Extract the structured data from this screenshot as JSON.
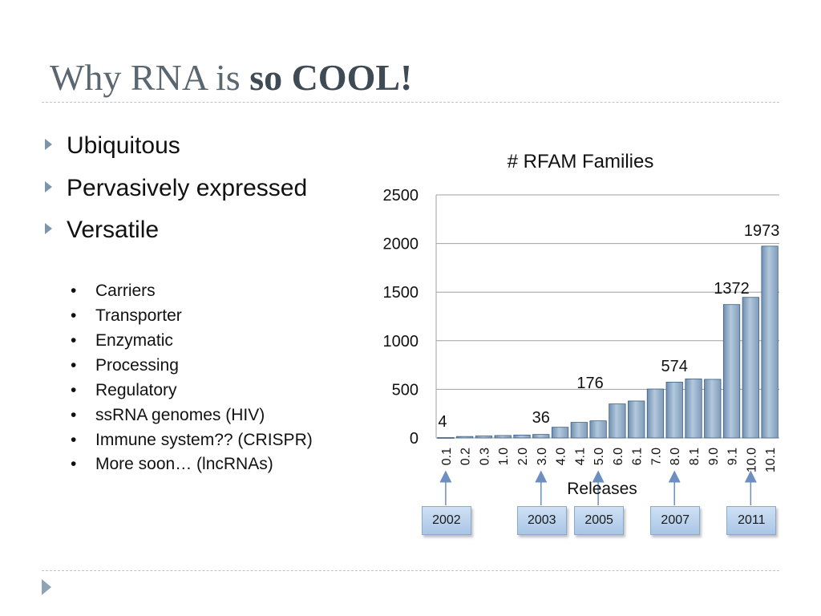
{
  "slide": {
    "title_plain": "Why RNA is ",
    "title_bold": "so COOL!",
    "bullets": [
      "Ubiquitous",
      "Pervasively expressed",
      "Versatile"
    ],
    "sub_bullets": [
      "Carriers",
      "Transporter",
      "Enzymatic",
      "Processing",
      "Regulatory",
      "ssRNA genomes (HIV)",
      "Immune system?? (CRISPR)",
      "More soon… (lncRNAs)"
    ],
    "sub_bullet_marker": "•"
  },
  "colors": {
    "bar_fill": "#8aa7c3",
    "bar_stroke": "#3f5f80",
    "axis": "#a0a0a0",
    "title": "#5a6670",
    "year_box": "#b7d0ec"
  },
  "chart_data": {
    "type": "bar",
    "title": "# RFAM Families",
    "xlabel": "Releases",
    "ylabel": "",
    "ylim": [
      0,
      2500
    ],
    "yticks": [
      "0",
      "500",
      "1000",
      "1500",
      "2000",
      "2500"
    ],
    "grid": true,
    "categories": [
      "0.1",
      "0.2",
      "0.3",
      "1.0",
      "2.0",
      "3.0",
      "4.0",
      "4.1",
      "5.0",
      "6.0",
      "6.1",
      "7.0",
      "8.0",
      "8.1",
      "9.0",
      "9.1",
      "10.0",
      "10.1"
    ],
    "values": [
      4,
      15,
      20,
      25,
      30,
      36,
      110,
      160,
      176,
      350,
      380,
      503,
      574,
      607,
      603,
      1372,
      1446,
      1973
    ],
    "data_labels": [
      {
        "category": "0.1",
        "text": "4"
      },
      {
        "category": "3.0",
        "text": "36"
      },
      {
        "category": "5.0",
        "text": "176"
      },
      {
        "category": "8.0",
        "text": "574"
      },
      {
        "category": "9.1",
        "text": "1372"
      },
      {
        "category": "10.1",
        "text": "1973"
      }
    ],
    "year_annotations": [
      {
        "category": "0.1",
        "label": "2002"
      },
      {
        "category": "3.0",
        "label": "2003"
      },
      {
        "category": "5.0",
        "label": "2005"
      },
      {
        "category": "8.0",
        "label": "2007"
      },
      {
        "category": "10.0",
        "label": "2011"
      }
    ]
  }
}
